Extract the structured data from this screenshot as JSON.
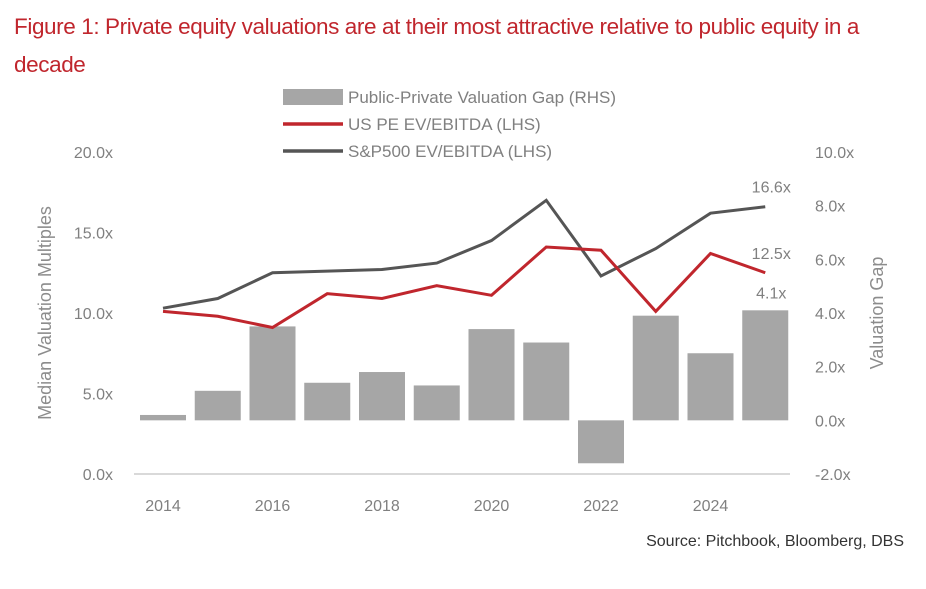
{
  "title": "Figure 1: Private equity valuations are at their most attractive relative to public equity in a decade",
  "source": "Source: Pitchbook, Bloomberg, DBS",
  "colors": {
    "title": "#c0262d",
    "bar": "#a6a6a6",
    "us_pe": "#c0262d",
    "sp500": "#555555",
    "axis_line": "#d9d9d9",
    "text": "#808080"
  },
  "chart_data": {
    "type": "bar",
    "title": "Figure 1: Private equity valuations are at their most attractive relative to public equity in a decade",
    "categories": [
      "2014",
      "2015",
      "2016",
      "2017",
      "2018",
      "2019",
      "2020",
      "2021",
      "2022",
      "2023",
      "2024",
      "2025"
    ],
    "x_tick_labels": [
      "2014",
      "2016",
      "2018",
      "2020",
      "2022",
      "2024"
    ],
    "ylabel": "Median Valuation Multiples",
    "y2label": "Valuation Gap",
    "ylim": [
      0,
      20
    ],
    "y_ticks": [
      "0.0x",
      "5.0x",
      "10.0x",
      "15.0x",
      "20.0x"
    ],
    "y2lim": [
      -2,
      10
    ],
    "y2_ticks": [
      "-2.0x",
      "0.0x",
      "2.0x",
      "4.0x",
      "6.0x",
      "8.0x",
      "10.0x"
    ],
    "grid": false,
    "legend_position": "top-center",
    "series": [
      {
        "name": "Public-Private Valuation Gap (RHS)",
        "type": "bar",
        "axis": "right",
        "values": [
          0.2,
          1.1,
          3.5,
          1.4,
          1.8,
          1.3,
          3.4,
          2.9,
          -1.6,
          3.9,
          2.5,
          4.1
        ]
      },
      {
        "name": "US PE EV/EBITDA (LHS)",
        "type": "line",
        "axis": "left",
        "values": [
          10.1,
          9.8,
          9.1,
          11.2,
          10.9,
          11.7,
          11.1,
          14.1,
          13.9,
          10.1,
          13.7,
          12.5
        ]
      },
      {
        "name": "S&P500 EV/EBITDA (LHS)",
        "type": "line",
        "axis": "left",
        "values": [
          10.3,
          10.9,
          12.5,
          12.6,
          12.7,
          13.1,
          14.5,
          17.0,
          12.3,
          14.0,
          16.2,
          16.6
        ]
      }
    ],
    "annotations": [
      {
        "series": "S&P500 EV/EBITDA (LHS)",
        "category": "2025",
        "text": "16.6x"
      },
      {
        "series": "US PE EV/EBITDA (LHS)",
        "category": "2025",
        "text": "12.5x"
      },
      {
        "series": "Public-Private Valuation Gap (RHS)",
        "category": "2025",
        "text": "4.1x"
      }
    ]
  }
}
